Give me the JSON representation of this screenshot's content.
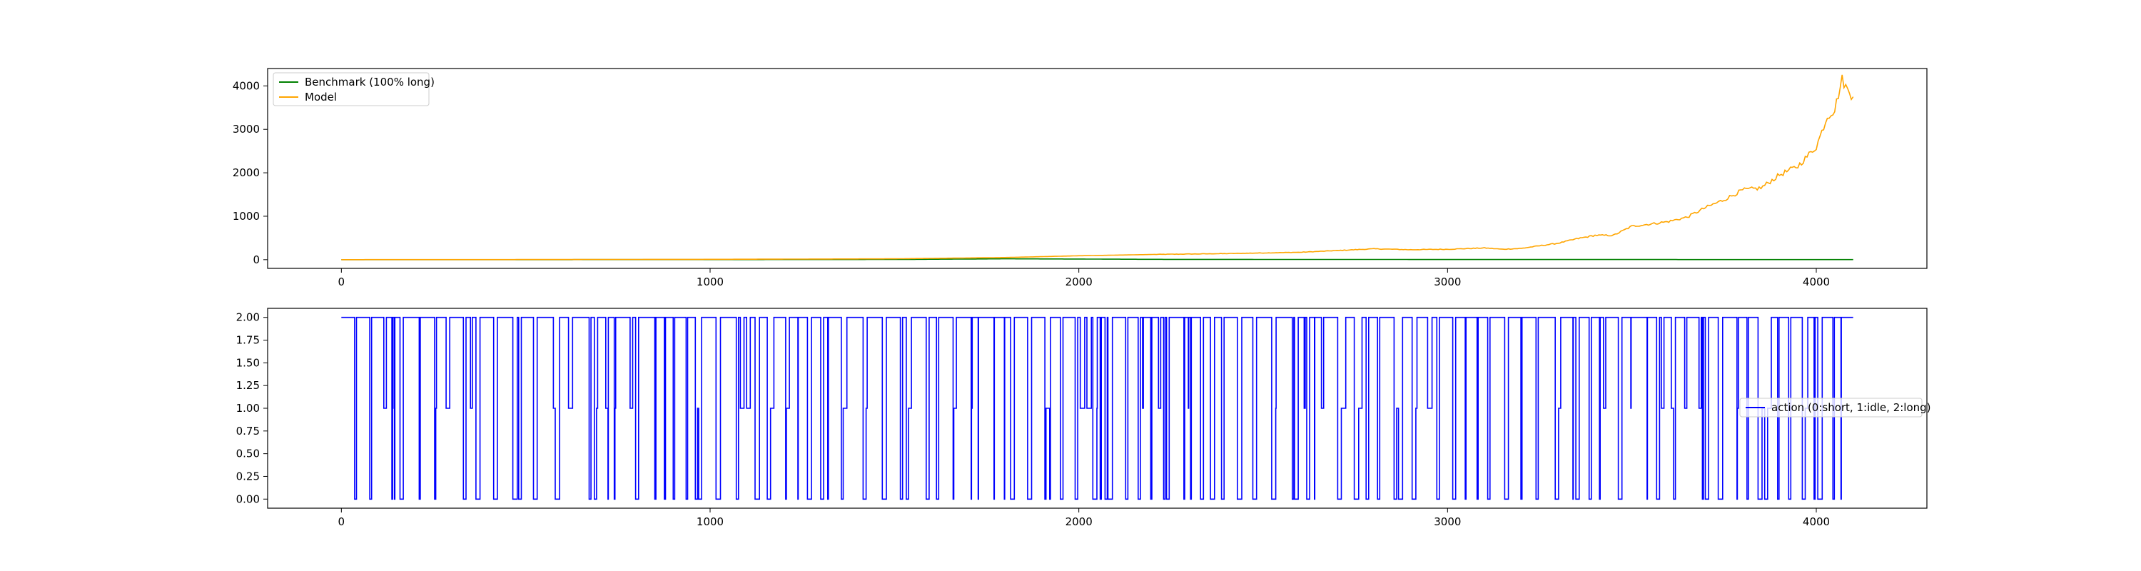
{
  "chart_data": [
    {
      "type": "line",
      "title": "",
      "xlabel": "",
      "ylabel": "",
      "xlim": [
        -200,
        4300
      ],
      "ylim": [
        -200,
        4400
      ],
      "xticks": [
        0,
        1000,
        2000,
        3000,
        4000
      ],
      "yticks": [
        0,
        1000,
        2000,
        3000,
        4000
      ],
      "grid": false,
      "legend_placement": "upper-left",
      "series": [
        {
          "name": "Benchmark (100% long)",
          "color": "#008000",
          "x": [
            0,
            500,
            1000,
            1500,
            1800,
            2000,
            2200,
            2500,
            2800,
            3000,
            3100,
            3200,
            3400,
            3600,
            3800,
            4000,
            4100
          ],
          "y": [
            1,
            1,
            2,
            5,
            20,
            15,
            8,
            6,
            5,
            4,
            4,
            3,
            3,
            3,
            2,
            2,
            2
          ]
        },
        {
          "name": "Model",
          "color": "#ffa500",
          "x": [
            0,
            500,
            1000,
            1500,
            1800,
            2000,
            2200,
            2400,
            2600,
            2800,
            2900,
            3000,
            3100,
            3150,
            3200,
            3300,
            3350,
            3400,
            3450,
            3500,
            3550,
            3600,
            3650,
            3700,
            3750,
            3800,
            3850,
            3900,
            3950,
            4000,
            4030,
            4050,
            4070,
            4085,
            4100
          ],
          "y": [
            1,
            3,
            8,
            20,
            50,
            90,
            120,
            140,
            170,
            250,
            230,
            240,
            270,
            240,
            260,
            380,
            480,
            560,
            560,
            770,
            820,
            880,
            980,
            1200,
            1380,
            1600,
            1650,
            1950,
            2150,
            2600,
            3300,
            3450,
            4150,
            3900,
            3750
          ]
        }
      ]
    },
    {
      "type": "line",
      "title": "",
      "xlabel": "",
      "ylabel": "",
      "xlim": [
        -200,
        4300
      ],
      "ylim": [
        -0.1,
        2.1
      ],
      "xticks": [
        0,
        1000,
        2000,
        3000,
        4000
      ],
      "yticks": [
        0,
        0.25,
        0.5,
        0.75,
        1.0,
        1.25,
        1.5,
        1.75,
        2.0
      ],
      "ytick_labels": [
        "0.00",
        "0.25",
        "0.50",
        "0.75",
        "1.00",
        "1.25",
        "1.50",
        "1.75",
        "2.00"
      ],
      "grid": false,
      "legend_placement": "center-right",
      "x_range": [
        0,
        4100
      ],
      "values_in": [
        0,
        1,
        2
      ],
      "series": [
        {
          "name": "action (0:short, 1:idle, 2:long)",
          "color": "#0000ff",
          "step": true
        }
      ]
    }
  ]
}
